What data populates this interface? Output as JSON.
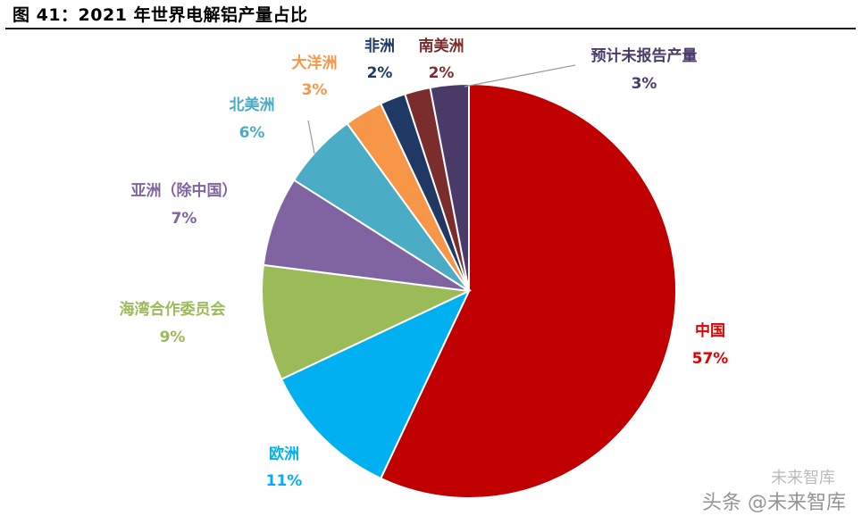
{
  "chart_data": {
    "type": "pie",
    "title": "图 41：2021 年世界电解铝产量占比",
    "slices": [
      {
        "name": "中国",
        "value": 57,
        "label": "57%",
        "color": "#C00000"
      },
      {
        "name": "欧洲",
        "value": 11,
        "label": "11%",
        "color": "#00B0F0"
      },
      {
        "name": "海湾合作委员会",
        "value": 9,
        "label": "9%",
        "color": "#9BBB59"
      },
      {
        "name": "亚洲（除中国）",
        "value": 7,
        "label": "7%",
        "color": "#8064A2"
      },
      {
        "name": "北美洲",
        "value": 6,
        "label": "6%",
        "color": "#4BACC6"
      },
      {
        "name": "大洋洲",
        "value": 3,
        "label": "3%",
        "color": "#F79646"
      },
      {
        "name": "非洲",
        "value": 2,
        "label": "2%",
        "color": "#1F3864"
      },
      {
        "name": "南美洲",
        "value": 2,
        "label": "2%",
        "color": "#7B2C2C"
      },
      {
        "name": "预计未报告产量",
        "value": 3,
        "label": "3%",
        "color": "#4A3A6A"
      }
    ]
  },
  "watermark": {
    "main": "头条 @未来智库",
    "sub": "未来智库"
  }
}
